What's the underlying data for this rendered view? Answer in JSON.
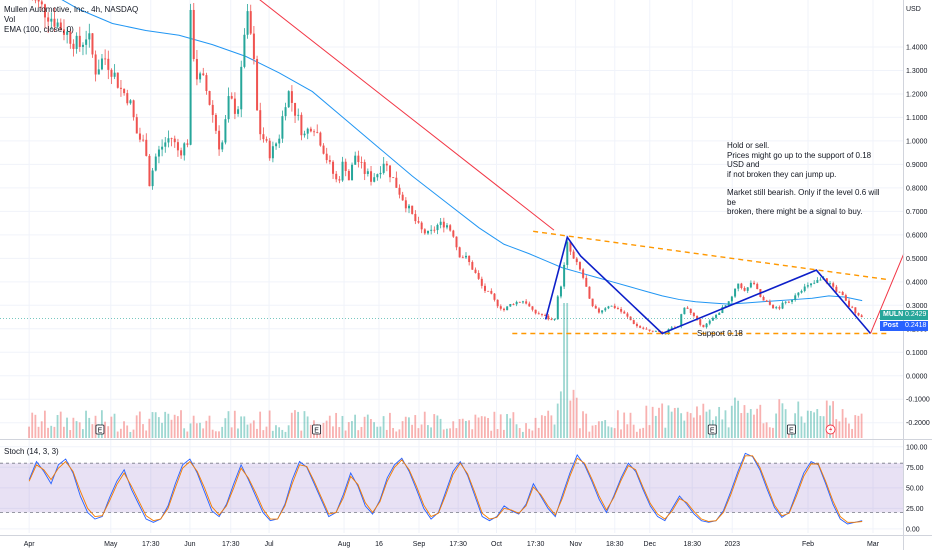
{
  "chart_data": [
    {
      "type": "candlestick",
      "symbol_title": "Mullen Automotive, Inc., 4h, NASDAQ",
      "indicators": [
        "Vol",
        "EMA (100, close, 0)"
      ],
      "currency": "USD",
      "y_ticks": [
        "1.4000",
        "1.3000",
        "1.2000",
        "1.1000",
        "1.0000",
        "0.9000",
        "0.8000",
        "0.7000",
        "0.6000",
        "0.5000",
        "0.4000",
        "0.3000",
        "0.2000",
        "0.1000",
        "0.0000",
        "-0.1000",
        "-0.2000"
      ],
      "y_tick_values": [
        1.4,
        1.3,
        1.2,
        1.1,
        1.0,
        0.9,
        0.8,
        0.7,
        0.6,
        0.5,
        0.4,
        0.3,
        0.2,
        0.1,
        0.0,
        -0.1,
        -0.2
      ],
      "ylim": [
        -0.265,
        1.6
      ],
      "x_ticks": [
        "Apr",
        "May",
        "17:30",
        "Jun",
        "17:30",
        "Jul",
        "Aug",
        "16",
        "Sep",
        "17:30",
        "Oct",
        "17:30",
        "Nov",
        "18:30",
        "Dec",
        "18:30",
        "2023",
        "Feb",
        "Mar"
      ],
      "x_tick_positions": [
        0,
        9.8,
        14.6,
        19.3,
        24.2,
        28.8,
        37.8,
        42,
        46.8,
        51.5,
        56.1,
        60.8,
        65.6,
        70.3,
        74.5,
        79.6,
        84.4,
        93.5,
        101.3
      ],
      "xlim": [
        -3.5,
        104.9
      ],
      "close_series": [
        [
          0,
          1.62
        ],
        [
          2,
          1.55
        ],
        [
          4,
          1.48
        ],
        [
          6,
          1.4
        ],
        [
          7,
          1.46
        ],
        [
          8,
          1.3
        ],
        [
          9,
          1.36
        ],
        [
          10,
          1.3
        ],
        [
          11,
          1.22
        ],
        [
          12,
          1.18
        ],
        [
          13,
          1.02
        ],
        [
          14,
          0.98
        ],
        [
          14.5,
          0.8
        ],
        [
          15,
          0.92
        ],
        [
          16,
          0.98
        ],
        [
          17,
          1.02
        ],
        [
          18,
          0.95
        ],
        [
          19,
          1.0
        ],
        [
          19.3,
          1.55
        ],
        [
          20,
          1.28
        ],
        [
          21,
          1.25
        ],
        [
          22,
          1.12
        ],
        [
          23,
          0.95
        ],
        [
          24,
          1.18
        ],
        [
          25,
          1.12
        ],
        [
          25.5,
          1.3
        ],
        [
          26,
          1.55
        ],
        [
          26.8,
          1.42
        ],
        [
          27.5,
          1.05
        ],
        [
          28,
          1.02
        ],
        [
          29,
          0.94
        ],
        [
          30,
          1.02
        ],
        [
          31,
          1.22
        ],
        [
          32,
          1.12
        ],
        [
          33,
          1.02
        ],
        [
          34,
          1.08
        ],
        [
          35,
          1.0
        ],
        [
          36,
          0.9
        ],
        [
          37,
          0.82
        ],
        [
          37.8,
          0.92
        ],
        [
          38.5,
          0.82
        ],
        [
          39,
          0.95
        ],
        [
          40,
          0.88
        ],
        [
          41,
          0.84
        ],
        [
          42,
          0.87
        ],
        [
          42.5,
          0.92
        ],
        [
          43.5,
          0.85
        ],
        [
          44.5,
          0.78
        ],
        [
          46,
          0.68
        ],
        [
          47,
          0.62
        ],
        [
          48,
          0.6
        ],
        [
          49,
          0.64
        ],
        [
          50,
          0.65
        ],
        [
          51,
          0.6
        ],
        [
          51.5,
          0.52
        ],
        [
          52.5,
          0.5
        ],
        [
          53.5,
          0.44
        ],
        [
          54.5,
          0.37
        ],
        [
          55.5,
          0.34
        ],
        [
          56,
          0.31
        ],
        [
          57,
          0.28
        ],
        [
          58,
          0.31
        ],
        [
          59.5,
          0.32
        ],
        [
          60.5,
          0.27
        ],
        [
          61.5,
          0.26
        ],
        [
          62.5,
          0.24
        ],
        [
          63,
          0.23
        ],
        [
          63.5,
          0.34
        ],
        [
          64,
          0.41
        ],
        [
          64.6,
          0.56
        ],
        [
          65.4,
          0.49
        ],
        [
          66,
          0.46
        ],
        [
          66.7,
          0.4
        ],
        [
          67.4,
          0.3
        ],
        [
          68.3,
          0.27
        ],
        [
          69.5,
          0.3
        ],
        [
          70.5,
          0.29
        ],
        [
          71.5,
          0.26
        ],
        [
          73,
          0.21
        ],
        [
          74.5,
          0.19
        ],
        [
          76.2,
          0.18
        ],
        [
          77,
          0.2
        ],
        [
          78,
          0.21
        ],
        [
          78.5,
          0.3
        ],
        [
          79,
          0.29
        ],
        [
          79.5,
          0.26
        ],
        [
          80.3,
          0.23
        ],
        [
          81,
          0.21
        ],
        [
          82,
          0.24
        ],
        [
          83,
          0.28
        ],
        [
          84,
          0.31
        ],
        [
          84.6,
          0.35
        ],
        [
          85.2,
          0.4
        ],
        [
          86,
          0.35
        ],
        [
          86.6,
          0.4
        ],
        [
          87.3,
          0.37
        ],
        [
          88,
          0.32
        ],
        [
          89,
          0.3
        ],
        [
          90,
          0.28
        ],
        [
          90.5,
          0.32
        ],
        [
          91,
          0.3
        ],
        [
          92,
          0.35
        ],
        [
          92.6,
          0.37
        ],
        [
          93.5,
          0.38
        ],
        [
          94.5,
          0.4
        ],
        [
          95.3,
          0.41
        ],
        [
          96.2,
          0.39
        ],
        [
          97,
          0.36
        ],
        [
          97.6,
          0.34
        ],
        [
          98.3,
          0.3
        ],
        [
          99,
          0.28
        ],
        [
          99.6,
          0.26
        ],
        [
          100.1,
          0.243
        ]
      ],
      "ema_100": [
        [
          3,
          1.62
        ],
        [
          6,
          1.56
        ],
        [
          10,
          1.5
        ],
        [
          14,
          1.47
        ],
        [
          18,
          1.45
        ],
        [
          22,
          1.41
        ],
        [
          26,
          1.36
        ],
        [
          30,
          1.29
        ],
        [
          34,
          1.21
        ],
        [
          38,
          1.09
        ],
        [
          42,
          0.97
        ],
        [
          46,
          0.85
        ],
        [
          50,
          0.74
        ],
        [
          54,
          0.63
        ],
        [
          57,
          0.56
        ],
        [
          60,
          0.52
        ],
        [
          62,
          0.49
        ],
        [
          64,
          0.46
        ],
        [
          66,
          0.44
        ],
        [
          68,
          0.42
        ],
        [
          70,
          0.4
        ],
        [
          72,
          0.38
        ],
        [
          74,
          0.36
        ],
        [
          76,
          0.34
        ],
        [
          78,
          0.325
        ],
        [
          80,
          0.315
        ],
        [
          82,
          0.31
        ],
        [
          84,
          0.305
        ],
        [
          86,
          0.31
        ],
        [
          88,
          0.315
        ],
        [
          90,
          0.32
        ],
        [
          92,
          0.325
        ],
        [
          94,
          0.33
        ],
        [
          96,
          0.34
        ],
        [
          98,
          0.335
        ],
        [
          100,
          0.32
        ]
      ],
      "annotations": {
        "resistance_line": [
          [
            27,
            1.62
          ],
          [
            63,
            0.62
          ]
        ],
        "upper_trend_dashed": [
          [
            60.5,
            0.615
          ],
          [
            103,
            0.41
          ]
        ],
        "support_dashed": [
          [
            58,
            0.18
          ],
          [
            103,
            0.18
          ]
        ],
        "zigzag_pattern": [
          [
            62,
            0.24
          ],
          [
            64.6,
            0.59
          ],
          [
            66.2,
            0.51
          ],
          [
            76,
            0.18
          ],
          [
            94.5,
            0.45
          ],
          [
            101,
            0.18
          ]
        ],
        "projection": [
          [
            101,
            0.18
          ],
          [
            105,
            0.52
          ]
        ],
        "note_lines": [
          "Hold or sell.\nPrices might go up to the support of 0.18 USD and\nif not broken they can jump up.",
          "Market still bearish. Only if the level 0.6 will be\nbroken, there might be a signal to buy."
        ],
        "support_label": "Support 0.18"
      },
      "price_labels": [
        {
          "label": "MULN",
          "value": "0.2429",
          "color": "#26a69a"
        },
        {
          "label": "Post",
          "value": "0.2418",
          "color": "#2962ff"
        }
      ],
      "earnings_markers_x": [
        8.5,
        34.5,
        82,
        91.5
      ],
      "earnings_marker_label": "E",
      "lightning_marker_x": 96.2
    },
    {
      "type": "line",
      "title": "Stoch (14, 3, 3)",
      "y_ticks": [
        "100.00",
        "75.00",
        "50.00",
        "25.00",
        "0.00"
      ],
      "y_tick_values": [
        100,
        75,
        50,
        25,
        0
      ],
      "ylim": [
        -5,
        107
      ],
      "band": [
        20,
        80
      ],
      "series": [
        {
          "name": "%K",
          "color": "#2962ff",
          "values": [
            60,
            82,
            70,
            55,
            78,
            85,
            68,
            40,
            20,
            12,
            15,
            38,
            58,
            72,
            48,
            30,
            12,
            8,
            12,
            28,
            55,
            78,
            85,
            68,
            45,
            22,
            15,
            30,
            55,
            78,
            60,
            40,
            20,
            10,
            12,
            30,
            60,
            82,
            75,
            55,
            35,
            15,
            20,
            42,
            68,
            52,
            28,
            18,
            35,
            62,
            78,
            86,
            70,
            48,
            25,
            12,
            20,
            45,
            70,
            82,
            65,
            40,
            15,
            10,
            15,
            28,
            22,
            18,
            30,
            55,
            40,
            25,
            15,
            42,
            68,
            90,
            78,
            58,
            36,
            20,
            40,
            62,
            80,
            70,
            48,
            28,
            15,
            10,
            25,
            40,
            30,
            18,
            10,
            8,
            10,
            22,
            45,
            70,
            92,
            88,
            72,
            48,
            26,
            14,
            20,
            44,
            68,
            82,
            78,
            55,
            30,
            12,
            6,
            8,
            10
          ]
        },
        {
          "name": "%D",
          "color": "#f57c00",
          "values": [
            58,
            78,
            72,
            60,
            74,
            82,
            70,
            46,
            25,
            15,
            16,
            34,
            54,
            68,
            52,
            34,
            16,
            10,
            12,
            25,
            50,
            74,
            82,
            70,
            50,
            27,
            17,
            28,
            50,
            74,
            62,
            44,
            24,
            12,
            12,
            28,
            55,
            78,
            76,
            58,
            38,
            18,
            20,
            38,
            64,
            54,
            32,
            20,
            33,
            58,
            75,
            84,
            72,
            52,
            29,
            15,
            19,
            41,
            66,
            80,
            67,
            44,
            19,
            12,
            14,
            25,
            23,
            19,
            28,
            51,
            42,
            28,
            17,
            38,
            64,
            86,
            80,
            61,
            40,
            23,
            38,
            59,
            77,
            72,
            51,
            31,
            18,
            12,
            22,
            37,
            32,
            21,
            12,
            9,
            10,
            20,
            41,
            66,
            89,
            89,
            75,
            52,
            29,
            16,
            19,
            40,
            64,
            79,
            79,
            58,
            34,
            15,
            8,
            8,
            9
          ]
        }
      ]
    }
  ]
}
